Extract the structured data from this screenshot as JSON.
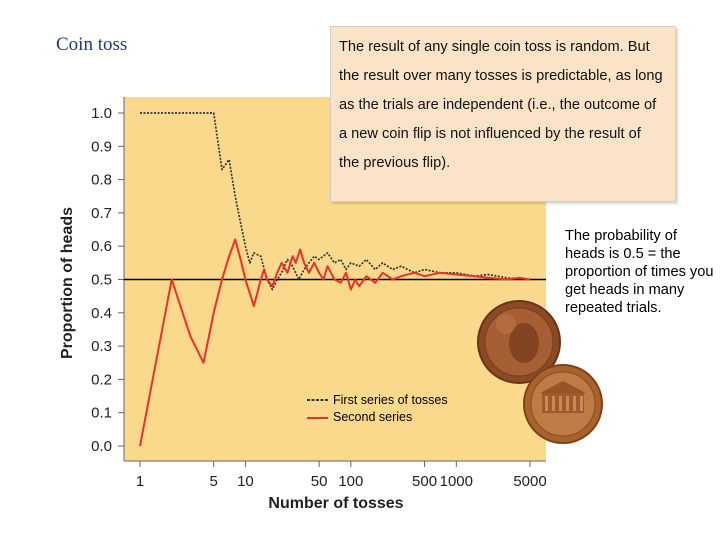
{
  "slide": {
    "title": "Coin toss",
    "callout_text": "The result of any single coin toss is random.  But the result over many tosses is predictable, as long as the trials are independent (i.e., the outcome of a new coin flip is not influenced by the result of the previous flip).",
    "side_note": "The probability of heads is 0.5 = the proportion of times you get heads in many repeated trials."
  },
  "colors": {
    "plot_background": "#fbd98c",
    "first_series": "#333333",
    "second_series": "#e8322a",
    "reference_line": "#000000"
  },
  "chart_data": {
    "type": "line",
    "xlabel": "Number of tosses",
    "ylabel": "Proportion of heads",
    "x_scale": "log",
    "xlim": [
      1,
      5000
    ],
    "ylim": [
      0,
      1
    ],
    "x_ticks": [
      1,
      5,
      10,
      50,
      100,
      500,
      1000,
      5000
    ],
    "x_tick_labels": [
      "1",
      "5",
      "10",
      "50",
      "100",
      "500",
      "1000",
      "5000"
    ],
    "y_ticks": [
      0,
      0.1,
      0.2,
      0.3,
      0.4,
      0.5,
      0.6,
      0.7,
      0.8,
      0.9,
      1.0
    ],
    "y_tick_labels": [
      "0.0",
      "0.1",
      "0.2",
      "0.3",
      "0.4",
      "0.5",
      "0.6",
      "0.7",
      "0.8",
      "0.9",
      "1.0"
    ],
    "reference_line": 0.5,
    "legend_position": "bottom-center",
    "series": [
      {
        "name": "First series of tosses",
        "style": "dotted",
        "points": [
          [
            1,
            1.0
          ],
          [
            2,
            1.0
          ],
          [
            3,
            1.0
          ],
          [
            4,
            1.0
          ],
          [
            5,
            1.0
          ],
          [
            6,
            0.83
          ],
          [
            7,
            0.86
          ],
          [
            8,
            0.75
          ],
          [
            9,
            0.67
          ],
          [
            10,
            0.6
          ],
          [
            11,
            0.55
          ],
          [
            12,
            0.58
          ],
          [
            14,
            0.57
          ],
          [
            16,
            0.5
          ],
          [
            18,
            0.47
          ],
          [
            20,
            0.5
          ],
          [
            22,
            0.52
          ],
          [
            25,
            0.56
          ],
          [
            28,
            0.54
          ],
          [
            32,
            0.5
          ],
          [
            36,
            0.53
          ],
          [
            40,
            0.55
          ],
          [
            45,
            0.57
          ],
          [
            50,
            0.56
          ],
          [
            60,
            0.58
          ],
          [
            70,
            0.55
          ],
          [
            80,
            0.56
          ],
          [
            90,
            0.53
          ],
          [
            100,
            0.55
          ],
          [
            120,
            0.54
          ],
          [
            140,
            0.56
          ],
          [
            170,
            0.53
          ],
          [
            200,
            0.55
          ],
          [
            250,
            0.53
          ],
          [
            300,
            0.54
          ],
          [
            400,
            0.52
          ],
          [
            500,
            0.53
          ],
          [
            700,
            0.52
          ],
          [
            1000,
            0.52
          ],
          [
            1500,
            0.51
          ],
          [
            2000,
            0.515
          ],
          [
            3000,
            0.505
          ],
          [
            5000,
            0.5
          ]
        ]
      },
      {
        "name": "Second series",
        "style": "solid",
        "points": [
          [
            1,
            0.0
          ],
          [
            2,
            0.5
          ],
          [
            3,
            0.33
          ],
          [
            4,
            0.25
          ],
          [
            5,
            0.4
          ],
          [
            6,
            0.5
          ],
          [
            7,
            0.57
          ],
          [
            8,
            0.62
          ],
          [
            9,
            0.56
          ],
          [
            10,
            0.5
          ],
          [
            12,
            0.42
          ],
          [
            13,
            0.46
          ],
          [
            14,
            0.5
          ],
          [
            15,
            0.53
          ],
          [
            16,
            0.5
          ],
          [
            18,
            0.48
          ],
          [
            20,
            0.52
          ],
          [
            22,
            0.55
          ],
          [
            25,
            0.52
          ],
          [
            28,
            0.57
          ],
          [
            30,
            0.55
          ],
          [
            33,
            0.59
          ],
          [
            36,
            0.55
          ],
          [
            40,
            0.52
          ],
          [
            45,
            0.55
          ],
          [
            50,
            0.52
          ],
          [
            55,
            0.5
          ],
          [
            60,
            0.54
          ],
          [
            70,
            0.5
          ],
          [
            80,
            0.49
          ],
          [
            90,
            0.52
          ],
          [
            100,
            0.47
          ],
          [
            110,
            0.5
          ],
          [
            120,
            0.48
          ],
          [
            140,
            0.51
          ],
          [
            170,
            0.49
          ],
          [
            200,
            0.52
          ],
          [
            250,
            0.5
          ],
          [
            300,
            0.51
          ],
          [
            400,
            0.52
          ],
          [
            500,
            0.51
          ],
          [
            700,
            0.52
          ],
          [
            1000,
            0.515
          ],
          [
            1500,
            0.51
          ],
          [
            2000,
            0.505
          ],
          [
            3000,
            0.5
          ],
          [
            4000,
            0.505
          ],
          [
            5000,
            0.5
          ]
        ]
      }
    ]
  }
}
